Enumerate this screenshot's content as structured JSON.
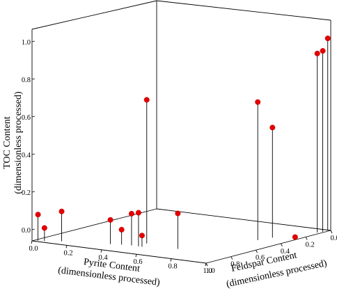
{
  "chart_data": {
    "type": "scatter",
    "projection": "3d",
    "x_axis": {
      "title_line1": "Pyrite Content",
      "title_line2": "(dimensionless processed)",
      "ticks": [
        0.0,
        0.2,
        0.4,
        0.6,
        0.8,
        1.0
      ],
      "tick_labels": [
        "0.0",
        "0.2",
        "0.4",
        "0.6",
        "0.8",
        "1.0"
      ],
      "range": [
        0,
        1
      ]
    },
    "y_axis": {
      "title_line1": "Feldspar Content",
      "title_line2": "(dimensionless processed)",
      "ticks": [
        0.0,
        0.2,
        0.4,
        0.6,
        0.8,
        1.0
      ],
      "tick_labels": [
        "0.0",
        "0.2",
        "0.4",
        "0.6",
        "0.8",
        "1.0"
      ],
      "range": [
        0,
        1
      ]
    },
    "z_axis": {
      "title_line1": "TOC Content",
      "title_line2": "(dimensionless processed)",
      "ticks": [
        0.0,
        0.2,
        0.4,
        0.6,
        0.8,
        1.0
      ],
      "tick_labels": [
        "0.0",
        "0.2",
        "0.4",
        "0.6",
        "0.8",
        "1.0"
      ],
      "range": [
        0,
        1.05
      ]
    },
    "marker_color": "#e30000",
    "stems": true,
    "points": [
      {
        "x": 0.02,
        "y": 0.98,
        "z": 0.14
      },
      {
        "x": 0.05,
        "y": 0.97,
        "z": 0.07
      },
      {
        "x": 0.12,
        "y": 0.93,
        "z": 0.16
      },
      {
        "x": 0.35,
        "y": 0.86,
        "z": 0.13
      },
      {
        "x": 0.4,
        "y": 0.84,
        "z": 0.08
      },
      {
        "x": 0.45,
        "y": 0.83,
        "z": 0.17
      },
      {
        "x": 0.49,
        "y": 0.83,
        "z": 0.18
      },
      {
        "x": 0.51,
        "y": 0.83,
        "z": 0.06
      },
      {
        "x": 0.48,
        "y": 0.75,
        "z": 0.77
      },
      {
        "x": 0.68,
        "y": 0.78,
        "z": 0.19
      },
      {
        "x": 0.86,
        "y": 0.39,
        "z": 0.74
      },
      {
        "x": 0.88,
        "y": 0.3,
        "z": 0.59
      },
      {
        "x": 0.96,
        "y": 0.23,
        "z": 0.0
      },
      {
        "x": 0.98,
        "y": 0.08,
        "z": 0.96
      },
      {
        "x": 0.99,
        "y": 0.05,
        "z": 0.97
      },
      {
        "x": 0.99,
        "y": 0.01,
        "z": 1.03
      }
    ]
  }
}
